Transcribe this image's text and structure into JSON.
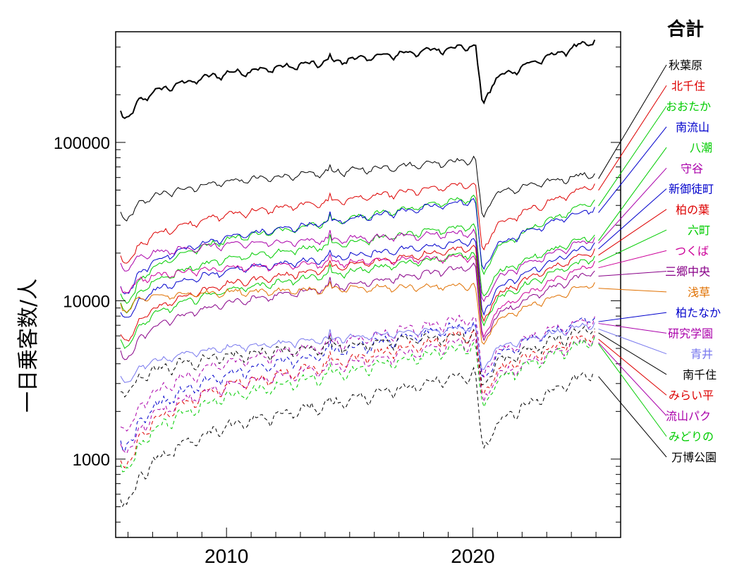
{
  "chart_data": {
    "type": "line",
    "title": "合計",
    "xlabel": "",
    "ylabel": "一日乗客数/人",
    "yscale": "log",
    "xlim": [
      2005.5,
      2026.0
    ],
    "ylim": [
      320,
      500000
    ],
    "x_ticks": [
      2010,
      2020
    ],
    "y_ticks": [
      1000,
      10000,
      100000
    ],
    "y_tick_labels": [
      "1000",
      "10000",
      "100000"
    ],
    "x_tick_labels": [
      "2010",
      "2020"
    ],
    "grid": false,
    "legend": "right",
    "series": [
      {
        "name": "合計",
        "color": "#000000",
        "dash": "solid",
        "width": 2,
        "start": 165000,
        "pre": 410000,
        "low": 240000,
        "end": 440000
      },
      {
        "name": "秋葉原",
        "color": "#000000",
        "dash": "solid",
        "width": 1,
        "start": 38000,
        "pre": 78000,
        "low": 46000,
        "end": 64000
      },
      {
        "name": "北千住",
        "color": "#dd0000",
        "dash": "solid",
        "width": 1,
        "start": 20000,
        "pre": 55000,
        "low": 28000,
        "end": 54000
      },
      {
        "name": "おおたか",
        "color": "#00cc00",
        "dash": "solid",
        "width": 1,
        "start": 11500,
        "pre": 45000,
        "low": 20000,
        "end": 43000
      },
      {
        "name": "南流山",
        "color": "#0000cc",
        "dash": "solid",
        "width": 1,
        "start": 13000,
        "pre": 43000,
        "low": 21000,
        "end": 39000
      },
      {
        "name": "八潮",
        "color": "#00cc00",
        "dash": "solid",
        "width": 1,
        "start": 10000,
        "pre": 30000,
        "low": 14000,
        "end": 26000
      },
      {
        "name": "守谷",
        "color": "#aa00aa",
        "dash": "solid",
        "width": 1,
        "start": 18000,
        "pre": 27000,
        "low": 13000,
        "end": 25000
      },
      {
        "name": "新御徒町",
        "color": "#0000cc",
        "dash": "solid",
        "width": 1,
        "start": 9000,
        "pre": 24000,
        "low": 11000,
        "end": 23000
      },
      {
        "name": "柏の葉",
        "color": "#dd0000",
        "dash": "solid",
        "width": 1,
        "start": 6500,
        "pre": 22000,
        "low": 10000,
        "end": 21000
      },
      {
        "name": "六町",
        "color": "#00cc00",
        "dash": "solid",
        "width": 1,
        "start": 6000,
        "pre": 20000,
        "low": 9500,
        "end": 19000
      },
      {
        "name": "つくば",
        "color": "#cc0099",
        "dash": "solid",
        "width": 1,
        "start": 13000,
        "pre": 19000,
        "low": 8000,
        "end": 17500
      },
      {
        "name": "三郷中央",
        "color": "#880088",
        "dash": "solid",
        "width": 1,
        "start": 5000,
        "pre": 16500,
        "low": 7500,
        "end": 15500
      },
      {
        "name": "浅草",
        "color": "#e07000",
        "dash": "solid",
        "width": 1,
        "start": 10000,
        "pre": 12500,
        "low": 7000,
        "end": 13000
      },
      {
        "name": "柏たなか",
        "color": "#0000cc",
        "dash": "dashed",
        "width": 1,
        "start": 1400,
        "pre": 7200,
        "low": 4200,
        "end": 8000
      },
      {
        "name": "研究学園",
        "color": "#aa00aa",
        "dash": "dashed",
        "width": 1,
        "start": 1800,
        "pre": 7800,
        "low": 4500,
        "end": 7800
      },
      {
        "name": "青井",
        "color": "#7777ee",
        "dash": "solid",
        "width": 1,
        "start": 3500,
        "pre": 6800,
        "low": 4800,
        "end": 7200
      },
      {
        "name": "南千住",
        "color": "#000000",
        "dash": "dashed",
        "width": 1,
        "start": 3000,
        "pre": 6200,
        "low": 3800,
        "end": 6800
      },
      {
        "name": "みらい平",
        "color": "#dd0000",
        "dash": "dashed",
        "width": 1,
        "start": 1100,
        "pre": 6300,
        "low": 3400,
        "end": 6200
      },
      {
        "name": "流山パク",
        "color": "#aa00aa",
        "dash": "dashed",
        "width": 1,
        "start": 1300,
        "pre": 5600,
        "low": 3100,
        "end": 5900
      },
      {
        "name": "みどりの",
        "color": "#00cc00",
        "dash": "dashed",
        "width": 1,
        "start": 1000,
        "pre": 5200,
        "low": 2900,
        "end": 5800
      },
      {
        "name": "万博公園",
        "color": "#000000",
        "dash": "dashed",
        "width": 1,
        "start": 620,
        "pre": 3500,
        "low": 1550,
        "end": 3600
      }
    ]
  }
}
